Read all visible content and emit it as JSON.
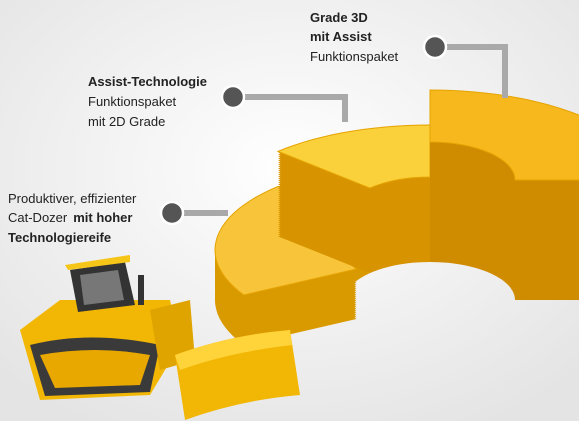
{
  "callouts": [
    {
      "title": [
        "Grade 3D",
        "mit Assist"
      ],
      "body": [
        "Funktionspaket"
      ]
    },
    {
      "title": [
        "Assist-Technologie"
      ],
      "body": [
        "Funktionspaket",
        "mit 2D Grade"
      ]
    },
    {
      "body": [
        "Produktiver, effizienter",
        "Cat-Dozer"
      ],
      "emphasis": [
        "mit hoher",
        "Technologiereife"
      ]
    }
  ]
}
